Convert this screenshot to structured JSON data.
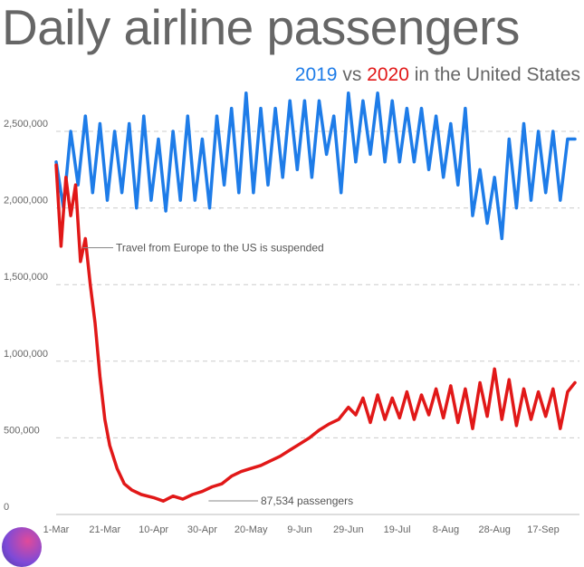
{
  "title": "Daily airline passengers",
  "subtitle": {
    "series_2019": "2019",
    "vs": " vs ",
    "series_2020": "2020",
    "tail": " in the United States"
  },
  "colors": {
    "series_2019": "#1e7ce8",
    "series_2020": "#e11818",
    "text": "#666666",
    "grid": "#cccccc"
  },
  "chart_data": {
    "type": "line",
    "title": "Daily airline passengers",
    "subtitle": "2019 vs 2020 in the United States",
    "ylim": [
      0,
      2800000
    ],
    "yticks": [
      0,
      500000,
      1000000,
      1500000,
      2000000,
      2500000
    ],
    "ytick_labels": [
      "0",
      "500,000",
      "1,000,000",
      "1,500,000",
      "2,000,000",
      "2,500,000"
    ],
    "xlim": [
      "2020-03-01",
      "2020-09-30"
    ],
    "xticks": [
      "2020-03-01",
      "2020-03-21",
      "2020-04-10",
      "2020-04-30",
      "2020-05-20",
      "2020-06-09",
      "2020-06-29",
      "2020-07-19",
      "2020-08-08",
      "2020-08-28",
      "2020-09-17"
    ],
    "xtick_labels": [
      "1-Mar",
      "21-Mar",
      "10-Apr",
      "30-Apr",
      "20-May",
      "9-Jun",
      "29-Jun",
      "19-Jul",
      "8-Aug",
      "28-Aug",
      "17-Sep"
    ],
    "grid": "horizontal dashed",
    "annotations": [
      {
        "text": "Travel from Europe to the US is suspended",
        "x": "2020-03-12",
        "y": 1800000
      },
      {
        "text": "87,534 passengers",
        "x": "2020-04-14",
        "y": 87534
      }
    ],
    "series": [
      {
        "name": "2019",
        "x": [
          "2020-03-01",
          "2020-03-04",
          "2020-03-07",
          "2020-03-10",
          "2020-03-13",
          "2020-03-16",
          "2020-03-19",
          "2020-03-22",
          "2020-03-25",
          "2020-03-28",
          "2020-03-31",
          "2020-04-03",
          "2020-04-06",
          "2020-04-09",
          "2020-04-12",
          "2020-04-15",
          "2020-04-18",
          "2020-04-21",
          "2020-04-24",
          "2020-04-27",
          "2020-04-30",
          "2020-05-03",
          "2020-05-06",
          "2020-05-09",
          "2020-05-12",
          "2020-05-15",
          "2020-05-18",
          "2020-05-21",
          "2020-05-24",
          "2020-05-27",
          "2020-05-30",
          "2020-06-02",
          "2020-06-05",
          "2020-06-08",
          "2020-06-11",
          "2020-06-14",
          "2020-06-17",
          "2020-06-20",
          "2020-06-23",
          "2020-06-26",
          "2020-06-29",
          "2020-07-02",
          "2020-07-05",
          "2020-07-08",
          "2020-07-11",
          "2020-07-14",
          "2020-07-17",
          "2020-07-20",
          "2020-07-23",
          "2020-07-26",
          "2020-07-29",
          "2020-08-01",
          "2020-08-04",
          "2020-08-07",
          "2020-08-10",
          "2020-08-13",
          "2020-08-16",
          "2020-08-19",
          "2020-08-22",
          "2020-08-25",
          "2020-08-28",
          "2020-08-31",
          "2020-09-03",
          "2020-09-06",
          "2020-09-09",
          "2020-09-12",
          "2020-09-15",
          "2020-09-18",
          "2020-09-21",
          "2020-09-24",
          "2020-09-27",
          "2020-09-30"
        ],
        "values": [
          2300000,
          2000000,
          2500000,
          2150000,
          2600000,
          2100000,
          2550000,
          2050000,
          2500000,
          2100000,
          2550000,
          2000000,
          2600000,
          2050000,
          2450000,
          1980000,
          2500000,
          2050000,
          2600000,
          2050000,
          2450000,
          2000000,
          2600000,
          2150000,
          2650000,
          2100000,
          2750000,
          2100000,
          2650000,
          2150000,
          2650000,
          2200000,
          2700000,
          2250000,
          2700000,
          2200000,
          2700000,
          2350000,
          2600000,
          2100000,
          2750000,
          2300000,
          2700000,
          2350000,
          2750000,
          2300000,
          2700000,
          2300000,
          2650000,
          2300000,
          2650000,
          2250000,
          2600000,
          2200000,
          2550000,
          2150000,
          2650000,
          1950000,
          2250000,
          1900000,
          2200000,
          1800000,
          2450000,
          2000000,
          2550000,
          2050000,
          2500000,
          2100000,
          2500000,
          2050000,
          2450000,
          2450000
        ]
      },
      {
        "name": "2020",
        "x": [
          "2020-03-01",
          "2020-03-03",
          "2020-03-05",
          "2020-03-07",
          "2020-03-09",
          "2020-03-11",
          "2020-03-13",
          "2020-03-15",
          "2020-03-17",
          "2020-03-19",
          "2020-03-21",
          "2020-03-23",
          "2020-03-26",
          "2020-03-29",
          "2020-04-01",
          "2020-04-05",
          "2020-04-10",
          "2020-04-14",
          "2020-04-18",
          "2020-04-22",
          "2020-04-26",
          "2020-04-30",
          "2020-05-04",
          "2020-05-08",
          "2020-05-12",
          "2020-05-16",
          "2020-05-20",
          "2020-05-24",
          "2020-05-28",
          "2020-06-01",
          "2020-06-05",
          "2020-06-09",
          "2020-06-13",
          "2020-06-17",
          "2020-06-21",
          "2020-06-25",
          "2020-06-29",
          "2020-07-02",
          "2020-07-05",
          "2020-07-08",
          "2020-07-11",
          "2020-07-14",
          "2020-07-17",
          "2020-07-20",
          "2020-07-23",
          "2020-07-26",
          "2020-07-29",
          "2020-08-01",
          "2020-08-04",
          "2020-08-07",
          "2020-08-10",
          "2020-08-13",
          "2020-08-16",
          "2020-08-19",
          "2020-08-22",
          "2020-08-25",
          "2020-08-28",
          "2020-08-31",
          "2020-09-03",
          "2020-09-06",
          "2020-09-09",
          "2020-09-12",
          "2020-09-15",
          "2020-09-18",
          "2020-09-21",
          "2020-09-24",
          "2020-09-27",
          "2020-09-30"
        ],
        "values": [
          2280000,
          1750000,
          2200000,
          1950000,
          2150000,
          1650000,
          1800000,
          1500000,
          1250000,
          900000,
          620000,
          450000,
          300000,
          200000,
          160000,
          130000,
          110000,
          87534,
          120000,
          100000,
          130000,
          150000,
          180000,
          200000,
          250000,
          280000,
          300000,
          320000,
          350000,
          380000,
          420000,
          460000,
          500000,
          550000,
          590000,
          620000,
          700000,
          650000,
          760000,
          600000,
          780000,
          620000,
          760000,
          630000,
          800000,
          620000,
          780000,
          650000,
          820000,
          630000,
          840000,
          600000,
          820000,
          560000,
          860000,
          640000,
          950000,
          620000,
          880000,
          580000,
          820000,
          620000,
          800000,
          640000,
          820000,
          560000,
          800000,
          860000
        ]
      }
    ]
  }
}
